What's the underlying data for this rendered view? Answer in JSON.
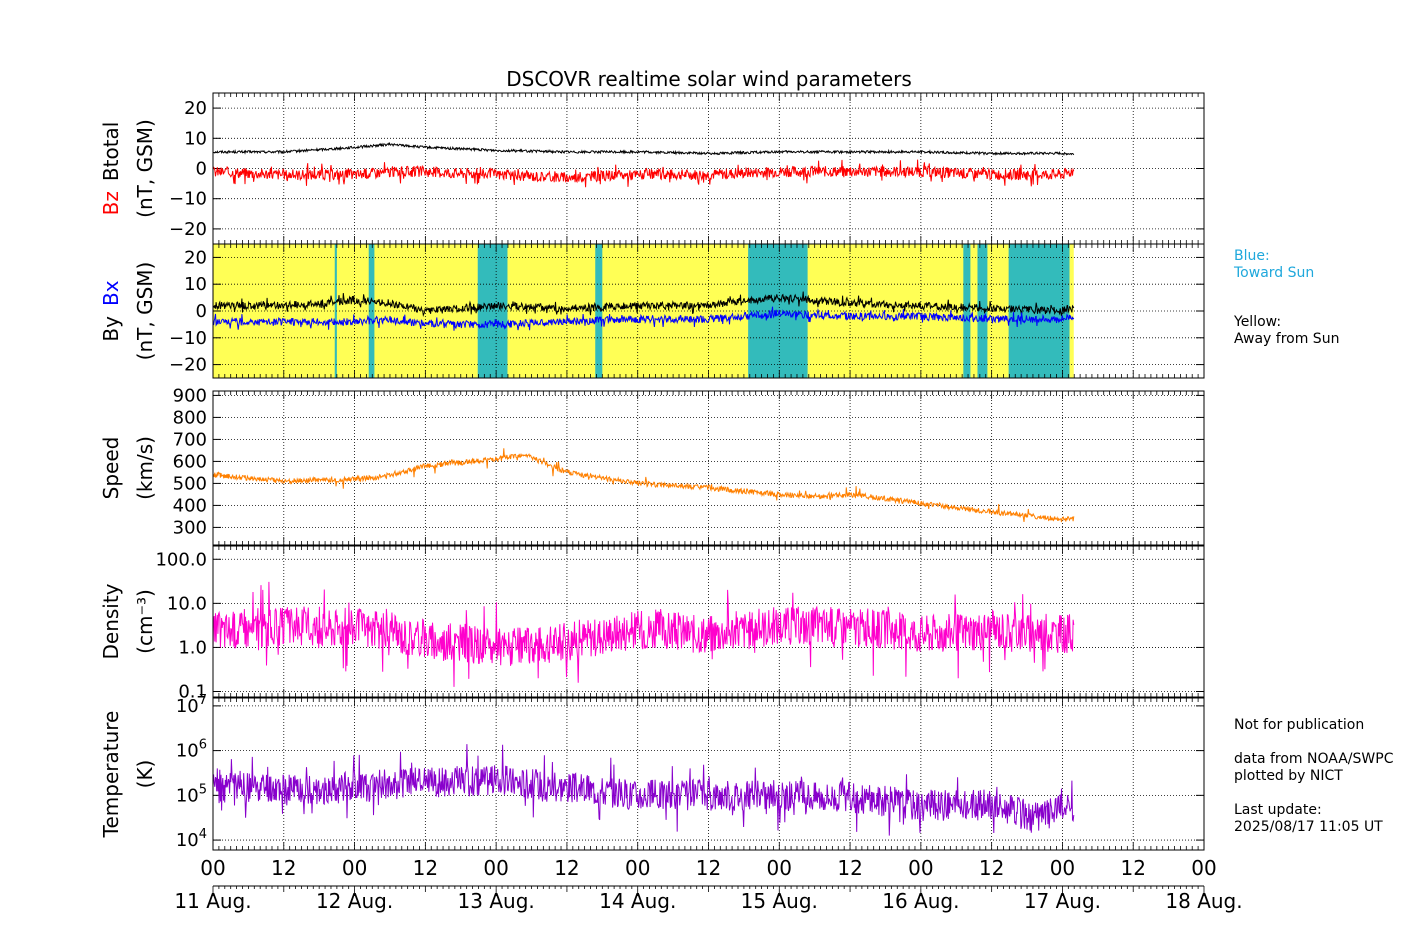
{
  "chart_data": {
    "type": "line",
    "title": "DSCOVR realtime solar wind parameters",
    "time_axis": {
      "range": [
        "2025-08-11T00:00",
        "2025-08-18T00:00"
      ],
      "data_end": "2025-08-17T02:00",
      "hour_tick_labels": [
        "00",
        "12",
        "00",
        "12",
        "00",
        "12",
        "00",
        "12",
        "00",
        "12",
        "00",
        "12",
        "00",
        "12",
        "00"
      ],
      "day_labels": [
        "11 Aug.",
        "12 Aug.",
        "13 Aug.",
        "14 Aug.",
        "15 Aug.",
        "16 Aug.",
        "17 Aug.",
        "18 Aug."
      ]
    },
    "panels": [
      {
        "id": "btotal_bz",
        "ylabel": "(nT, GSM)",
        "ylabel_parts": [
          {
            "text": "Bz",
            "color": "#ff0000"
          },
          {
            "text": "Btotal",
            "color": "#000000"
          }
        ],
        "scale": "linear",
        "ylim": [
          -25,
          25
        ],
        "ticks": [
          20,
          10,
          0,
          -10,
          -20
        ],
        "tick_labels": [
          "20",
          "10",
          "0",
          "−10",
          "−20"
        ],
        "grid": true,
        "series": [
          {
            "name": "Btotal",
            "color": "#000000",
            "x_day": [
              0,
              0.5,
              1,
              1.25,
              1.5,
              2,
              2.5,
              3,
              3.5,
              4,
              4.5,
              5,
              5.5,
              6,
              6.08
            ],
            "values": [
              5.5,
              5.5,
              7,
              8,
              7,
              6,
              5.5,
              5.5,
              5,
              5.5,
              5.5,
              5.5,
              5,
              5,
              4.8
            ]
          },
          {
            "name": "Bz",
            "color": "#ff0000",
            "x_day": [
              0,
              0.5,
              1,
              1.25,
              1.5,
              2,
              2.5,
              3,
              3.5,
              4,
              4.5,
              5,
              5.5,
              6,
              6.08
            ],
            "values": [
              -1,
              -2,
              -2,
              -1,
              -1,
              -2,
              -3,
              -2,
              -2,
              -1,
              -1,
              -1,
              -2,
              -2,
              -1
            ]
          }
        ]
      },
      {
        "id": "by_bx",
        "ylabel": "(nT, GSM)",
        "ylabel_parts": [
          {
            "text": "By",
            "color": "#000000"
          },
          {
            "text": "Bx",
            "color": "#0000ff"
          }
        ],
        "scale": "linear",
        "ylim": [
          -25,
          25
        ],
        "ticks": [
          20,
          10,
          0,
          -10,
          -20
        ],
        "tick_labels": [
          "20",
          "10",
          "0",
          "−10",
          "−20"
        ],
        "grid": true,
        "background": {
          "away_color": "#ffff55",
          "toward_color": "#33bbbb",
          "toward_sun_days": [
            0.86,
            0.875,
            1.1,
            1.14,
            1.87,
            2.08,
            2.7,
            2.75,
            3.78,
            4.2,
            5.3,
            5.35,
            5.4,
            5.47,
            5.62,
            6.05
          ]
        },
        "series": [
          {
            "name": "By",
            "color": "#000000",
            "x_day": [
              0,
              0.5,
              1,
              1.25,
              1.5,
              2,
              2.5,
              3,
              3.5,
              4,
              4.5,
              5,
              5.5,
              6,
              6.08
            ],
            "values": [
              2,
              2,
              4,
              3,
              0,
              2,
              1,
              2,
              2,
              5,
              3,
              2,
              1,
              0,
              2
            ]
          },
          {
            "name": "Bx",
            "color": "#0000ff",
            "x_day": [
              0,
              0.5,
              1,
              1.25,
              1.5,
              2,
              2.5,
              3,
              3.5,
              4,
              4.5,
              5,
              5.5,
              6,
              6.08
            ],
            "values": [
              -4,
              -4,
              -4,
              -3,
              -5,
              -5,
              -4,
              -3,
              -3,
              -1,
              -2,
              -2,
              -3,
              -3,
              -2
            ]
          }
        ]
      },
      {
        "id": "speed",
        "ylabel": "Speed",
        "ylabel2": "(km/s)",
        "scale": "linear",
        "ylim": [
          220,
          920
        ],
        "ticks": [
          900,
          800,
          700,
          600,
          500,
          400,
          300
        ],
        "tick_labels": [
          "900",
          "800",
          "700",
          "600",
          "500",
          "400",
          "300"
        ],
        "grid": true,
        "series": [
          {
            "name": "Speed",
            "color": "#ff8000",
            "x_day": [
              0,
              0.5,
              1,
              1.2,
              1.5,
              2,
              2.2,
              2.5,
              3,
              3.5,
              4,
              4.3,
              4.5,
              5,
              5.5,
              6,
              6.08
            ],
            "values": [
              540,
              510,
              520,
              530,
              580,
              610,
              630,
              550,
              500,
              480,
              450,
              440,
              450,
              410,
              370,
              335,
              340
            ]
          }
        ]
      },
      {
        "id": "density",
        "ylabel": "Density",
        "ylabel2": "(cm⁻³)",
        "scale": "log",
        "ylim": [
          0.075,
          200
        ],
        "ticks": [
          100,
          10,
          1,
          0.1
        ],
        "tick_labels": [
          "100.0",
          "10.0",
          "1.0",
          "0.1"
        ],
        "grid": true,
        "series": [
          {
            "name": "Density",
            "color": "#ff00cc",
            "x_day": [
              0,
              0.5,
              1,
              1.5,
              2,
              2.5,
              3,
              3.5,
              4,
              4.5,
              5,
              5.5,
              6,
              6.08
            ],
            "values": [
              2.5,
              3,
              3,
              1.5,
              1,
              1.3,
              2.5,
              2,
              3,
              3,
              2,
              2.5,
              2,
              2.2
            ]
          }
        ]
      },
      {
        "id": "temperature",
        "ylabel": "Temperature",
        "ylabel2": "(K)",
        "scale": "log",
        "ylim": [
          6000,
          15000000
        ],
        "ticks": [
          10000000,
          1000000,
          100000,
          10000
        ],
        "tick_labels": [
          {
            "base": "10",
            "exp": "7"
          },
          {
            "base": "10",
            "exp": "6"
          },
          {
            "base": "10",
            "exp": "5"
          },
          {
            "base": "10",
            "exp": "4"
          }
        ],
        "grid": true,
        "series": [
          {
            "name": "Temperature",
            "color": "#8800cc",
            "x_day": [
              0,
              0.5,
              1,
              1.5,
              2,
              2.5,
              3,
              3.5,
              4,
              4.5,
              5,
              5.5,
              5.8,
              6,
              6.08
            ],
            "values": [
              150000,
              130000,
              150000,
              200000,
              220000,
              150000,
              100000,
              100000,
              100000,
              90000,
              60000,
              60000,
              30000,
              50000,
              40000
            ]
          }
        ]
      }
    ]
  },
  "side_notes": {
    "toward": "Blue:\nToward Sun",
    "toward_color": "#1fa8dc",
    "away": "Yellow:\nAway from Sun",
    "footer": "Not for publication\n\ndata from NOAA/SWPC\nplotted by NICT\n\nLast update:\n2025/08/17 11:05 UT"
  }
}
